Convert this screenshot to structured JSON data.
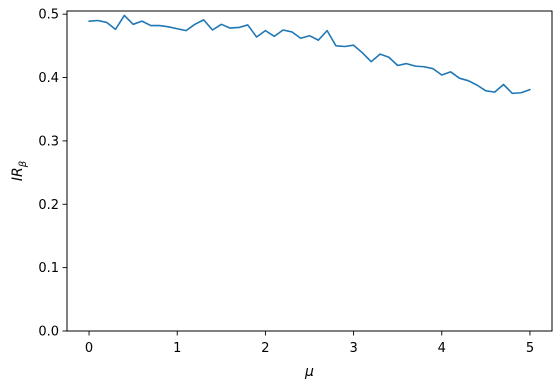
{
  "chart_data": {
    "type": "line",
    "title": "",
    "xlabel": "μ",
    "ylabel": {
      "base": "IR",
      "subscript": "β"
    },
    "xlim": [
      -0.25,
      5.25
    ],
    "ylim": [
      0.0,
      0.505
    ],
    "xticks": [
      0,
      1,
      2,
      3,
      4,
      5
    ],
    "xtick_labels": [
      "0",
      "1",
      "2",
      "3",
      "4",
      "5"
    ],
    "yticks": [
      0.0,
      0.1,
      0.2,
      0.3,
      0.4,
      0.5
    ],
    "ytick_labels": [
      "0.0",
      "0.1",
      "0.2",
      "0.3",
      "0.4",
      "0.5"
    ],
    "grid": false,
    "series": [
      {
        "color": "#1f77b4",
        "x": [
          0.0,
          0.1,
          0.2,
          0.3,
          0.4,
          0.5,
          0.6,
          0.7,
          0.8,
          0.9,
          1.0,
          1.1,
          1.2,
          1.3,
          1.4,
          1.5,
          1.6,
          1.7,
          1.8,
          1.9,
          2.0,
          2.1,
          2.2,
          2.3,
          2.4,
          2.5,
          2.6,
          2.7,
          2.8,
          2.9,
          3.0,
          3.1,
          3.2,
          3.3,
          3.4,
          3.5,
          3.6,
          3.7,
          3.8,
          3.9,
          4.0,
          4.1,
          4.2,
          4.3,
          4.4,
          4.5,
          4.6,
          4.7,
          4.8,
          4.9,
          5.0
        ],
        "y": [
          0.489,
          0.49,
          0.487,
          0.476,
          0.498,
          0.484,
          0.489,
          0.482,
          0.482,
          0.48,
          0.477,
          0.474,
          0.484,
          0.491,
          0.475,
          0.484,
          0.478,
          0.479,
          0.483,
          0.464,
          0.474,
          0.465,
          0.475,
          0.472,
          0.462,
          0.466,
          0.459,
          0.474,
          0.45,
          0.449,
          0.451,
          0.439,
          0.425,
          0.437,
          0.432,
          0.419,
          0.422,
          0.418,
          0.417,
          0.414,
          0.404,
          0.409,
          0.399,
          0.395,
          0.388,
          0.379,
          0.377,
          0.389,
          0.375,
          0.376,
          0.381
        ]
      }
    ]
  }
}
